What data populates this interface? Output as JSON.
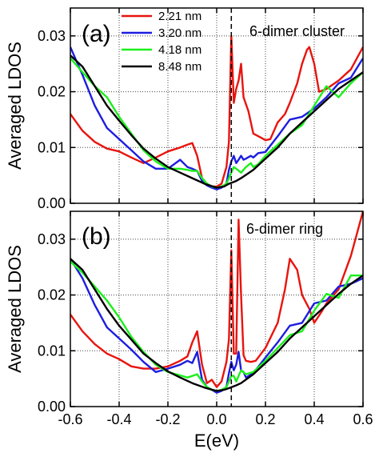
{
  "chart_data": [
    {
      "type": "line",
      "panel_label": "(a)",
      "title": "6-dimer cluster",
      "ylabel": "Averaged LDOS",
      "xlim": [
        -0.6,
        0.6
      ],
      "ylim": [
        0.0,
        0.035
      ],
      "xticks": [
        "-0.6",
        "-0.4",
        "-0.2",
        "0.0",
        "0.2",
        "0.4",
        "0.6"
      ],
      "yticks": [
        "0.00",
        "0.01",
        "0.02",
        "0.03"
      ],
      "grid": true,
      "legend_position": "top-left",
      "marker_line_x": 0.06,
      "series": [
        {
          "name": "2.21 nm",
          "color": "#e8140e",
          "x": [
            -0.6,
            -0.55,
            -0.5,
            -0.45,
            -0.4,
            -0.35,
            -0.3,
            -0.25,
            -0.2,
            -0.15,
            -0.12,
            -0.1,
            -0.08,
            -0.06,
            -0.04,
            -0.02,
            0.0,
            0.02,
            0.04,
            0.05,
            0.06,
            0.07,
            0.08,
            0.09,
            0.1,
            0.11,
            0.13,
            0.15,
            0.18,
            0.2,
            0.22,
            0.25,
            0.28,
            0.3,
            0.33,
            0.35,
            0.37,
            0.38,
            0.4,
            0.42,
            0.45,
            0.5,
            0.55,
            0.6
          ],
          "y": [
            0.016,
            0.013,
            0.011,
            0.0098,
            0.0093,
            0.0082,
            0.0072,
            0.0082,
            0.0093,
            0.01,
            0.0105,
            0.0108,
            0.0085,
            0.0045,
            0.0035,
            0.003,
            0.003,
            0.0035,
            0.0065,
            0.011,
            0.03,
            0.018,
            0.0205,
            0.022,
            0.025,
            0.019,
            0.0165,
            0.0125,
            0.0118,
            0.0113,
            0.0115,
            0.0145,
            0.016,
            0.018,
            0.0215,
            0.025,
            0.0275,
            0.028,
            0.025,
            0.02,
            0.0205,
            0.022,
            0.024,
            0.028
          ]
        },
        {
          "name": "3.20 nm",
          "color": "#1d1de0",
          "x": [
            -0.6,
            -0.55,
            -0.5,
            -0.45,
            -0.4,
            -0.35,
            -0.3,
            -0.25,
            -0.2,
            -0.15,
            -0.12,
            -0.1,
            -0.08,
            -0.06,
            -0.04,
            -0.02,
            0.0,
            0.02,
            0.04,
            0.05,
            0.06,
            0.07,
            0.08,
            0.09,
            0.1,
            0.11,
            0.12,
            0.14,
            0.15,
            0.17,
            0.2,
            0.25,
            0.3,
            0.35,
            0.4,
            0.45,
            0.5,
            0.55,
            0.6
          ],
          "y": [
            0.028,
            0.023,
            0.0175,
            0.0135,
            0.0115,
            0.0095,
            0.0075,
            0.0062,
            0.0062,
            0.0078,
            0.0065,
            0.0062,
            0.0058,
            0.004,
            0.0032,
            0.0028,
            0.0025,
            0.0028,
            0.0035,
            0.006,
            0.0075,
            0.0085,
            0.0072,
            0.0078,
            0.0085,
            0.0078,
            0.008,
            0.0085,
            0.0082,
            0.009,
            0.0092,
            0.012,
            0.015,
            0.0155,
            0.017,
            0.019,
            0.0215,
            0.0225,
            0.026
          ]
        },
        {
          "name": "4.18 nm",
          "color": "#1bf01b",
          "x": [
            -0.6,
            -0.55,
            -0.5,
            -0.45,
            -0.4,
            -0.35,
            -0.3,
            -0.25,
            -0.2,
            -0.15,
            -0.12,
            -0.1,
            -0.08,
            -0.06,
            -0.04,
            -0.02,
            0.0,
            0.02,
            0.04,
            0.05,
            0.06,
            0.07,
            0.08,
            0.1,
            0.12,
            0.14,
            0.15,
            0.17,
            0.2,
            0.25,
            0.3,
            0.35,
            0.4,
            0.45,
            0.5,
            0.55,
            0.6
          ],
          "y": [
            0.026,
            0.0235,
            0.021,
            0.019,
            0.0155,
            0.0125,
            0.0095,
            0.0075,
            0.0062,
            0.0062,
            0.006,
            0.0058,
            0.0058,
            0.0045,
            0.0035,
            0.003,
            0.0028,
            0.003,
            0.0035,
            0.0045,
            0.0055,
            0.0065,
            0.0062,
            0.0055,
            0.0065,
            0.0072,
            0.0065,
            0.007,
            0.0085,
            0.0105,
            0.0125,
            0.014,
            0.0175,
            0.021,
            0.019,
            0.0215,
            0.0235
          ]
        },
        {
          "name": "8.48 nm",
          "color": "#000000",
          "x": [
            -0.6,
            -0.55,
            -0.5,
            -0.45,
            -0.4,
            -0.35,
            -0.3,
            -0.25,
            -0.2,
            -0.15,
            -0.1,
            -0.05,
            0.0,
            0.03,
            0.05,
            0.08,
            0.1,
            0.15,
            0.2,
            0.25,
            0.3,
            0.35,
            0.4,
            0.45,
            0.5,
            0.55,
            0.6
          ],
          "y": [
            0.0265,
            0.0245,
            0.021,
            0.0175,
            0.0148,
            0.0122,
            0.0098,
            0.008,
            0.0065,
            0.0055,
            0.0045,
            0.0035,
            0.0028,
            0.003,
            0.0035,
            0.004,
            0.0045,
            0.006,
            0.008,
            0.01,
            0.0125,
            0.0145,
            0.0165,
            0.0185,
            0.0205,
            0.022,
            0.0235
          ]
        }
      ]
    },
    {
      "type": "line",
      "panel_label": "(b)",
      "title": "6-dimer ring",
      "ylabel": "Averaged LDOS",
      "xlabel": "E(eV)",
      "xlim": [
        -0.6,
        0.6
      ],
      "ylim": [
        0.0,
        0.035
      ],
      "xticks": [
        "-0.6",
        "-0.4",
        "-0.2",
        "0.0",
        "0.2",
        "0.4",
        "0.6"
      ],
      "yticks": [
        "0.00",
        "0.01",
        "0.02",
        "0.03"
      ],
      "grid": true,
      "marker_line_x": 0.06,
      "series": [
        {
          "name": "2.21 nm",
          "color": "#e8140e",
          "x": [
            -0.6,
            -0.55,
            -0.5,
            -0.45,
            -0.4,
            -0.35,
            -0.3,
            -0.25,
            -0.2,
            -0.15,
            -0.12,
            -0.1,
            -0.08,
            -0.06,
            -0.04,
            -0.02,
            0.0,
            0.02,
            0.04,
            0.05,
            0.06,
            0.07,
            0.08,
            0.09,
            0.1,
            0.11,
            0.12,
            0.14,
            0.16,
            0.2,
            0.25,
            0.28,
            0.3,
            0.33,
            0.35,
            0.38,
            0.4,
            0.43,
            0.45,
            0.5,
            0.55,
            0.6
          ],
          "y": [
            0.0165,
            0.0135,
            0.0112,
            0.0095,
            0.0085,
            0.0072,
            0.0068,
            0.0068,
            0.0072,
            0.0082,
            0.009,
            0.0115,
            0.0135,
            0.0075,
            0.0042,
            0.0048,
            0.0035,
            0.0045,
            0.008,
            0.012,
            0.028,
            0.0095,
            0.0095,
            0.0335,
            0.02,
            0.0092,
            0.0082,
            0.008,
            0.0082,
            0.0105,
            0.015,
            0.021,
            0.0265,
            0.0245,
            0.02,
            0.0175,
            0.015,
            0.017,
            0.0185,
            0.021,
            0.027,
            0.035
          ]
        },
        {
          "name": "3.20 nm",
          "color": "#1d1de0",
          "x": [
            -0.6,
            -0.55,
            -0.5,
            -0.45,
            -0.4,
            -0.35,
            -0.3,
            -0.25,
            -0.2,
            -0.15,
            -0.12,
            -0.1,
            -0.08,
            -0.06,
            -0.04,
            -0.02,
            0.0,
            0.02,
            0.04,
            0.05,
            0.06,
            0.07,
            0.08,
            0.09,
            0.1,
            0.11,
            0.12,
            0.15,
            0.2,
            0.25,
            0.3,
            0.35,
            0.4,
            0.45,
            0.5,
            0.55,
            0.6
          ],
          "y": [
            0.0265,
            0.023,
            0.0182,
            0.0142,
            0.0122,
            0.0102,
            0.008,
            0.0062,
            0.0068,
            0.0075,
            0.0082,
            0.0078,
            0.0098,
            0.0048,
            0.0035,
            0.003,
            0.0025,
            0.0028,
            0.0035,
            0.006,
            0.008,
            0.0065,
            0.0075,
            0.0098,
            0.0065,
            0.0062,
            0.0052,
            0.006,
            0.0088,
            0.0115,
            0.0145,
            0.015,
            0.0185,
            0.019,
            0.0215,
            0.022,
            0.023
          ]
        },
        {
          "name": "4.18 nm",
          "color": "#1bf01b",
          "x": [
            -0.6,
            -0.55,
            -0.5,
            -0.45,
            -0.4,
            -0.35,
            -0.3,
            -0.25,
            -0.2,
            -0.15,
            -0.12,
            -0.1,
            -0.08,
            -0.06,
            -0.04,
            -0.02,
            0.0,
            0.02,
            0.04,
            0.05,
            0.06,
            0.07,
            0.08,
            0.09,
            0.1,
            0.12,
            0.15,
            0.2,
            0.25,
            0.3,
            0.35,
            0.4,
            0.45,
            0.5,
            0.55,
            0.6
          ],
          "y": [
            0.026,
            0.024,
            0.0215,
            0.019,
            0.016,
            0.0125,
            0.0098,
            0.0075,
            0.0062,
            0.0056,
            0.0052,
            0.0055,
            0.0058,
            0.0045,
            0.0035,
            0.003,
            0.0028,
            0.003,
            0.0035,
            0.0045,
            0.0055,
            0.0055,
            0.0045,
            0.0055,
            0.0065,
            0.0058,
            0.0062,
            0.0082,
            0.0105,
            0.0128,
            0.0135,
            0.0172,
            0.0202,
            0.0195,
            0.0235,
            0.0235
          ]
        },
        {
          "name": "8.48 nm",
          "color": "#000000",
          "x": [
            -0.6,
            -0.55,
            -0.5,
            -0.45,
            -0.4,
            -0.35,
            -0.3,
            -0.25,
            -0.2,
            -0.15,
            -0.1,
            -0.05,
            0.0,
            0.03,
            0.05,
            0.08,
            0.1,
            0.15,
            0.2,
            0.25,
            0.3,
            0.35,
            0.4,
            0.45,
            0.5,
            0.55,
            0.6
          ],
          "y": [
            0.0265,
            0.0245,
            0.021,
            0.0175,
            0.0145,
            0.012,
            0.0095,
            0.0078,
            0.0063,
            0.0052,
            0.0042,
            0.0034,
            0.0028,
            0.003,
            0.0033,
            0.0038,
            0.0042,
            0.0058,
            0.0078,
            0.0098,
            0.0122,
            0.0142,
            0.0162,
            0.0182,
            0.0202,
            0.022,
            0.0235
          ]
        }
      ]
    }
  ]
}
